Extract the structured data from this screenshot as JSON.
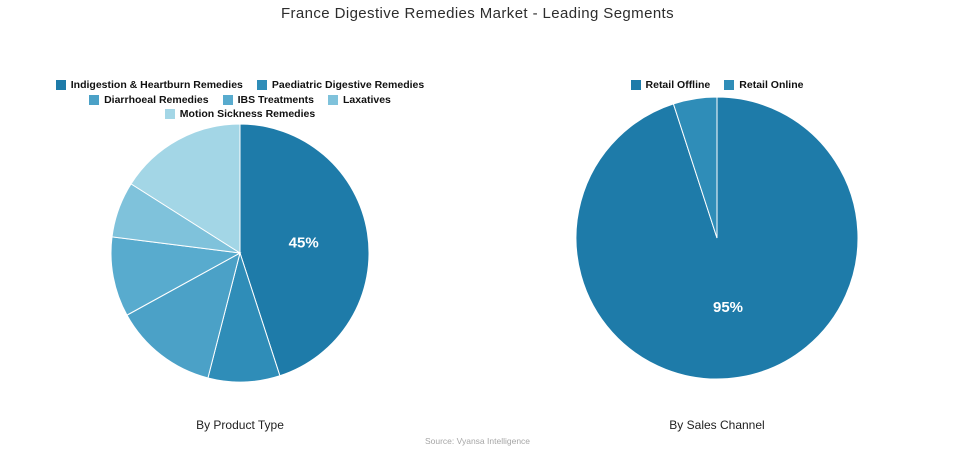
{
  "title": "France Digestive Remedies Market - Leading Segments",
  "source": "Source: Vyansa Intelligence",
  "chart_data": [
    {
      "type": "pie",
      "title": "By Product Type",
      "labels": [
        "Indigestion & Heartburn Remedies",
        "Paediatric Digestive Remedies",
        "Diarrhoeal Remedies",
        "IBS Treatments",
        "Laxatives",
        "Motion Sickness Remedies"
      ],
      "values": [
        45,
        9,
        13,
        10,
        7,
        16
      ],
      "colors": [
        "#1e7ba9",
        "#2f8db8",
        "#4ba1c7",
        "#58abce",
        "#7fc2db",
        "#a3d6e6"
      ],
      "slice_labels": [
        "45%",
        "",
        "",
        "",
        "",
        ""
      ],
      "legend_position": "top",
      "start_angle_deg": 0,
      "direction": "clockwise"
    },
    {
      "type": "pie",
      "title": "By Sales Channel",
      "labels": [
        "Retail Offline",
        "Retail Online"
      ],
      "values": [
        95,
        5
      ],
      "colors": [
        "#1e7ba9",
        "#2f8db8"
      ],
      "slice_labels": [
        "95%",
        ""
      ],
      "legend_position": "top",
      "start_angle_deg": 0,
      "direction": "clockwise"
    }
  ]
}
